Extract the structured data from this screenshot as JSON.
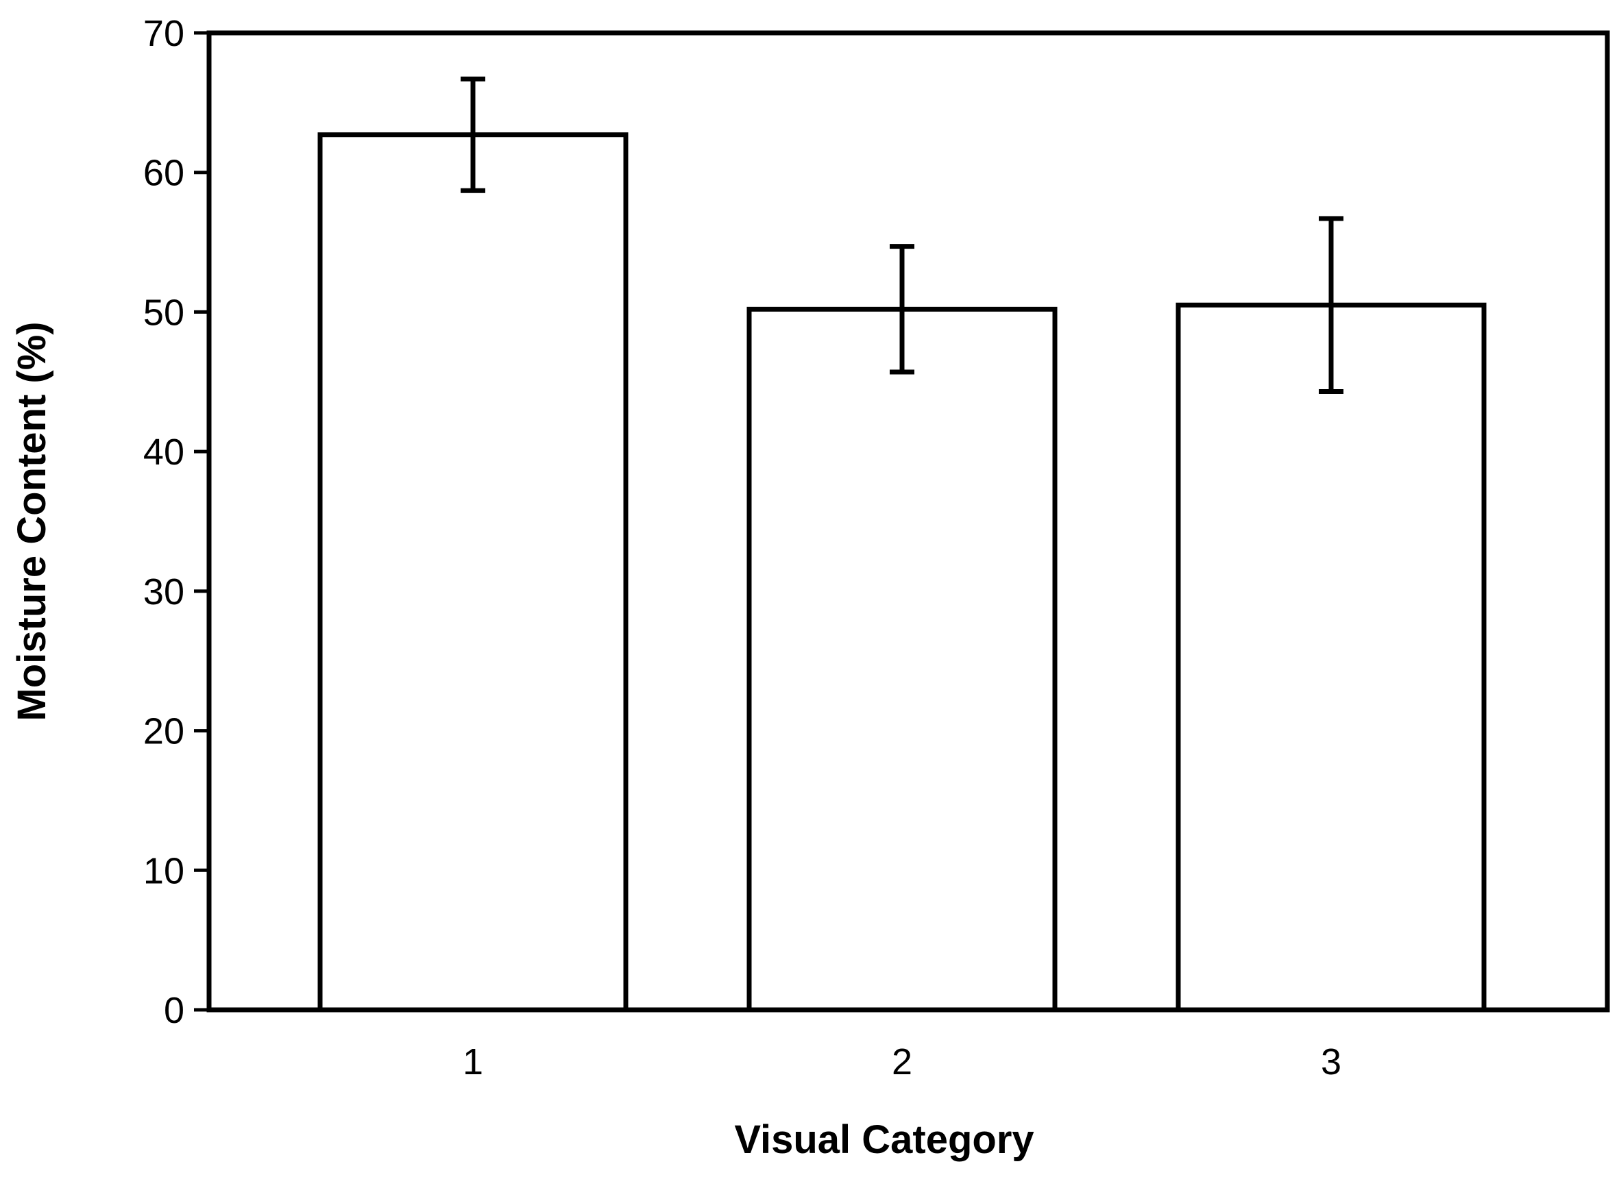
{
  "chart_data": {
    "type": "bar",
    "title": "",
    "xlabel": "Visual Category",
    "ylabel": "Moisture Content (%)",
    "categories": [
      "1",
      "2",
      "3"
    ],
    "values": [
      62.7,
      50.2,
      50.5
    ],
    "error": [
      4.0,
      4.5,
      6.2
    ],
    "ylim": [
      0,
      70
    ],
    "yticks": [
      0,
      10,
      20,
      30,
      40,
      50,
      60,
      70
    ],
    "grid": false,
    "legend": "none",
    "colors": {
      "bar_fill": "#ffffff",
      "bar_stroke": "#000000",
      "axis": "#000000"
    }
  }
}
